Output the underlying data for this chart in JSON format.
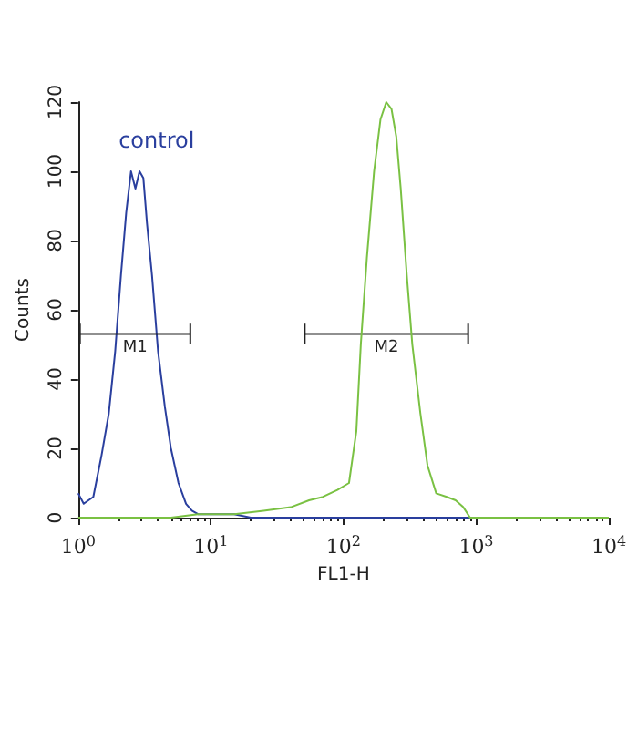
{
  "chart_data": {
    "type": "line",
    "xlabel": "FL1-H",
    "ylabel": "Counts",
    "log": "x",
    "xlim": [
      1,
      10000
    ],
    "xticks": [
      {
        "value": 1,
        "label": "10$^{0}$"
      },
      {
        "value": 10,
        "label": "10$^{1}$"
      },
      {
        "value": 100,
        "label": "10$^{2}$"
      },
      {
        "value": 1000,
        "label": "10$^{3}$"
      },
      {
        "value": 10000,
        "label": "10$^{4}$"
      }
    ],
    "ylim": [
      0,
      120
    ],
    "yticks": [
      0,
      20,
      40,
      60,
      80,
      100,
      120
    ],
    "grid": false,
    "legend": false,
    "marker": "none",
    "line_style": "solid",
    "series": [
      {
        "name": "control",
        "color": "#2a3f9e",
        "x": [
          1,
          1.1,
          1.3,
          1.5,
          1.7,
          1.9,
          2.1,
          2.3,
          2.5,
          2.7,
          2.9,
          3.1,
          3.3,
          3.6,
          4.0,
          4.5,
          5,
          5.7,
          6.5,
          7.2,
          8,
          10,
          15,
          20,
          10000
        ],
        "values": [
          7,
          4,
          6,
          18,
          30,
          48,
          70,
          88,
          100,
          95,
          100,
          98,
          85,
          70,
          48,
          32,
          20,
          10,
          4,
          2,
          1,
          1,
          1,
          0,
          0
        ]
      },
      {
        "type": "line",
        "name": "M1",
        "color": "#222222",
        "x": [
          1.03,
          7
        ],
        "values": [
          53,
          53
        ],
        "errors": [
          3,
          3
        ]
      },
      {
        "type": "line",
        "name": "M2",
        "color": "#222222",
        "x": [
          51,
          870
        ],
        "values": [
          53,
          53
        ],
        "errors": [
          3,
          3
        ]
      },
      {
        "color": "#7ac143",
        "x": [
          1,
          5,
          8,
          15,
          25,
          40,
          55,
          70,
          90,
          110,
          125,
          135,
          150,
          170,
          190,
          210,
          230,
          250,
          270,
          300,
          330,
          380,
          430,
          500,
          600,
          700,
          800,
          900,
          10000
        ],
        "values": [
          0,
          0,
          1,
          1,
          2,
          3,
          5,
          6,
          8,
          10,
          25,
          50,
          75,
          100,
          115,
          120,
          118,
          110,
          95,
          70,
          50,
          30,
          15,
          7,
          6,
          5,
          3,
          0,
          0
        ]
      }
    ]
  }
}
